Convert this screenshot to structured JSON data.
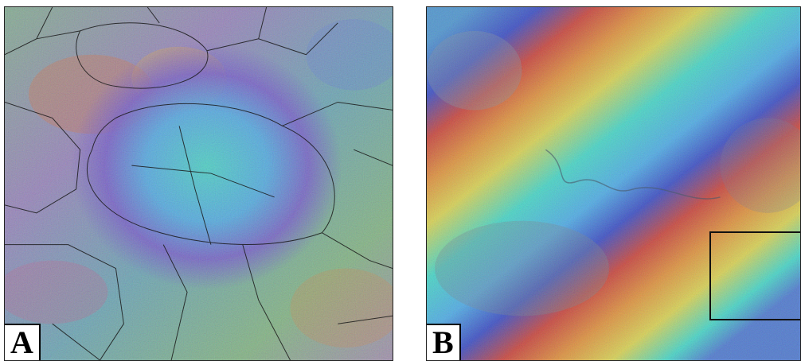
{
  "panels": [
    {
      "label": "A"
    },
    {
      "label": "B"
    }
  ],
  "colors": {
    "fringe_palette": [
      "#2a3fc4",
      "#3fa7e8",
      "#36d6c6",
      "#7ed36b",
      "#d9d245",
      "#e08a2c",
      "#c8352b",
      "#8a3aa8"
    ],
    "boundary_lines": "#1a1a1a"
  }
}
